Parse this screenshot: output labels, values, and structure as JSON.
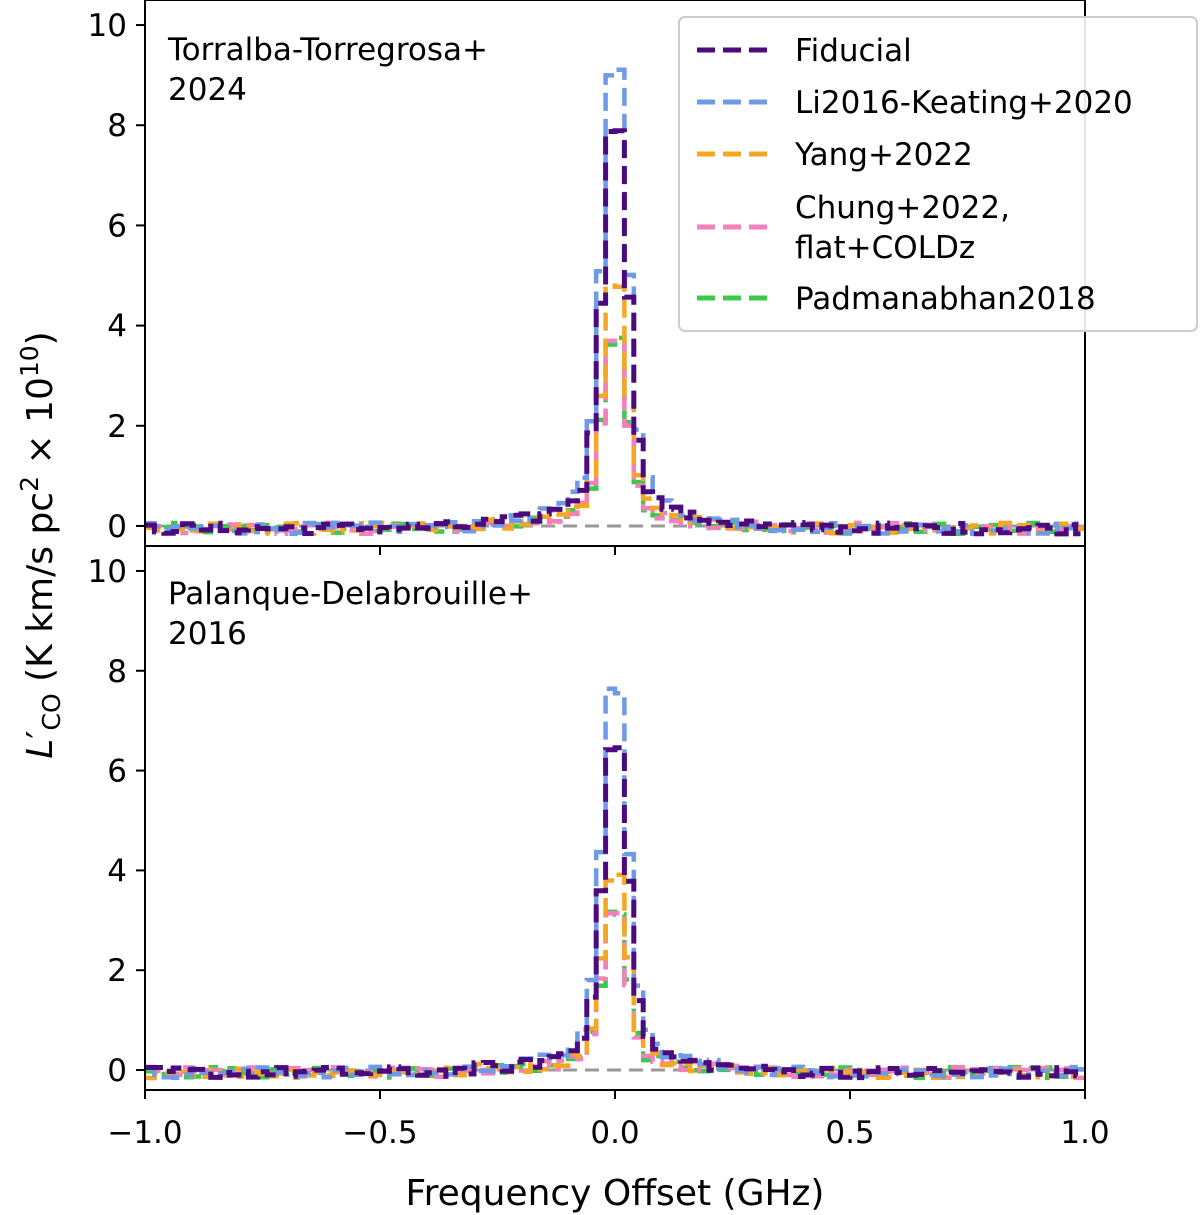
{
  "chart_data": {
    "type": "line",
    "xlabel": "Frequency Offset (GHz)",
    "ylabel_parts": {
      "L": "L",
      "prime": "′",
      "sub": "CO",
      "rest": " (K km/s pc",
      "sq": "2",
      "times": " × 10",
      "exp": "10",
      "close": ")"
    },
    "xlim": [
      -1.0,
      1.0
    ],
    "xticks": [
      "−1.0",
      "−0.5",
      "0.0",
      "0.5",
      "1.0"
    ],
    "yticks": [
      "0",
      "2",
      "4",
      "6",
      "8",
      "10"
    ],
    "colors": {
      "Fiducial": "#4b0a7d",
      "Li2016-Keating+2020": "#6e9ae6",
      "Yang+2022": "#f5a623",
      "Chung+2022, flat+COLDz": "#f47fbd",
      "Padmanabhan2018": "#3cc84a",
      "zero": "#999999"
    },
    "legend": {
      "placement": "upper-right",
      "entries": [
        {
          "series": "Fiducial",
          "lines": [
            "Fiducial"
          ]
        },
        {
          "series": "Li2016-Keating+2020",
          "lines": [
            "Li2016-Keating+2020"
          ]
        },
        {
          "series": "Yang+2022",
          "lines": [
            "Yang+2022"
          ]
        },
        {
          "series": "Chung+2022, flat+COLDz",
          "lines": [
            "Chung+2022,",
            "flat+COLDz"
          ]
        },
        {
          "series": "Padmanabhan2018",
          "lines": [
            "Padmanabhan2018"
          ]
        }
      ]
    },
    "panels": [
      {
        "annotation": [
          "Torralba-Torregrosa+",
          "2024"
        ],
        "ylim": [
          -0.4,
          10.5
        ],
        "peaks": {
          "Fiducial": 8.8,
          "Li2016-Keating+2020": 10.0,
          "Yang+2022": 5.2,
          "Chung+2022, flat+COLDz": 4.0,
          "Padmanabhan2018": 4.1
        }
      },
      {
        "annotation": [
          "Palanque-Delabrouille+",
          "2016"
        ],
        "ylim": [
          -0.4,
          10.5
        ],
        "peaks": {
          "Fiducial": 7.2,
          "Li2016-Keating+2020": 8.4,
          "Yang+2022": 4.3,
          "Chung+2022, flat+COLDz": 3.4,
          "Padmanabhan2018": 3.4
        }
      }
    ]
  }
}
